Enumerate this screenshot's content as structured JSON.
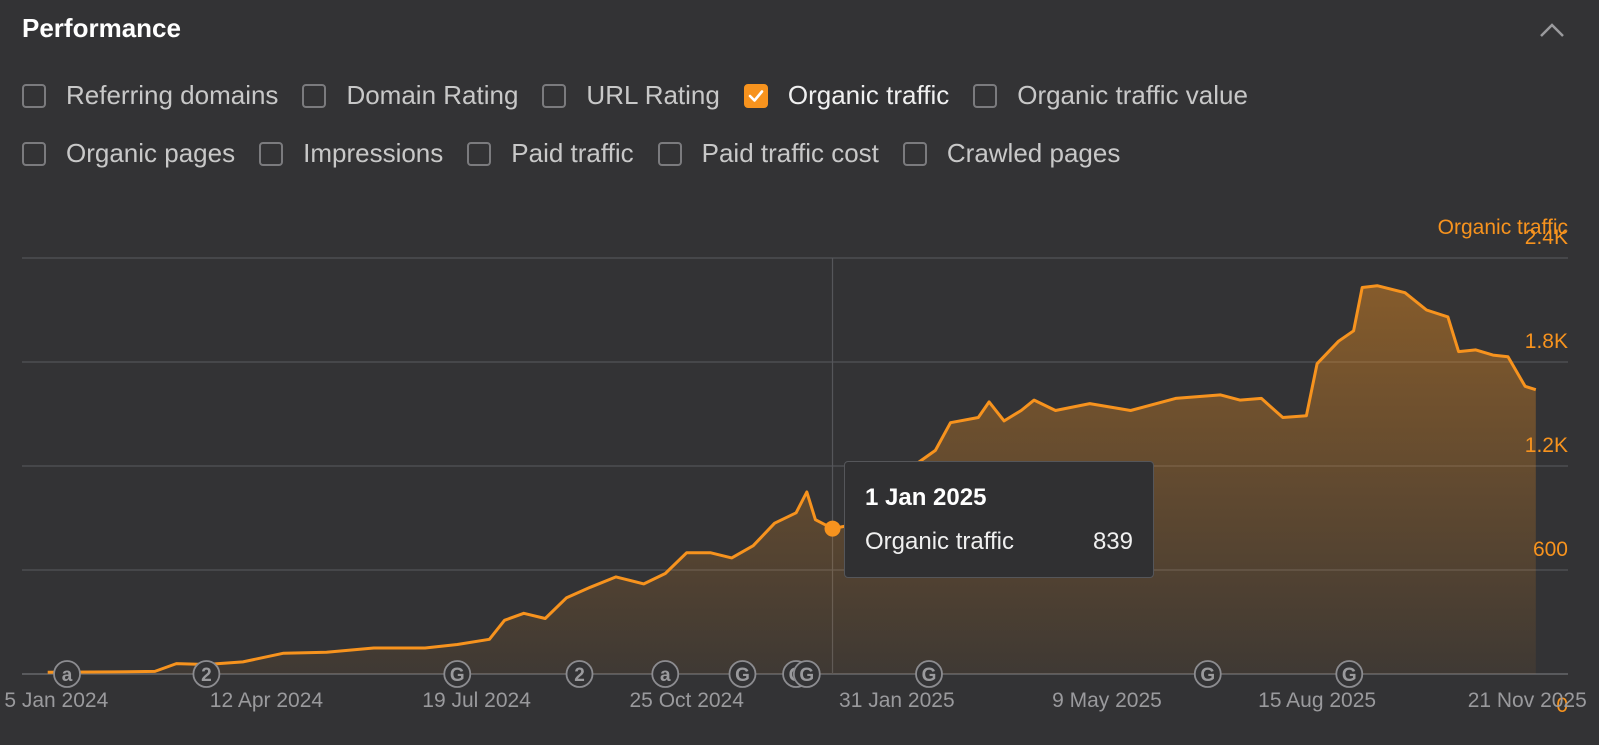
{
  "panel": {
    "title": "Performance"
  },
  "metrics": [
    {
      "label": "Referring domains",
      "checked": false
    },
    {
      "label": "Domain Rating",
      "checked": false
    },
    {
      "label": "URL Rating",
      "checked": false
    },
    {
      "label": "Organic traffic",
      "checked": true
    },
    {
      "label": "Organic traffic value",
      "checked": false
    },
    {
      "label": "Organic pages",
      "checked": false
    },
    {
      "label": "Impressions",
      "checked": false
    },
    {
      "label": "Paid traffic",
      "checked": false
    },
    {
      "label": "Paid traffic cost",
      "checked": false
    },
    {
      "label": "Crawled pages",
      "checked": false
    }
  ],
  "colors": {
    "accent": "#f7931e",
    "background": "#333335",
    "grid": "#4d4e52"
  },
  "tooltip": {
    "date": "1 Jan 2025",
    "series": "Organic traffic",
    "value": "839"
  },
  "chart_data": {
    "type": "area",
    "ylabel": "Organic traffic",
    "ylim": [
      0,
      2400
    ],
    "yticks": [
      0,
      600,
      1200,
      1800,
      2400
    ],
    "ytick_labels": [
      "0",
      "600",
      "1.2K",
      "1.8K",
      "2.4K"
    ],
    "xlim": [
      "2023-12-20",
      "2025-12-10"
    ],
    "xticks": [
      "2024-01-05",
      "2024-04-12",
      "2024-07-19",
      "2024-10-25",
      "2025-01-31",
      "2025-05-09",
      "2025-08-15",
      "2025-11-21"
    ],
    "xtick_labels": [
      "5 Jan 2024",
      "12 Apr 2024",
      "19 Jul 2024",
      "25 Oct 2024",
      "31 Jan 2025",
      "9 May 2025",
      "15 Aug 2025",
      "21 Nov 2025"
    ],
    "grid": true,
    "series": [
      {
        "name": "Organic traffic",
        "color": "#f7931e",
        "points": [
          [
            "2024-01-01",
            10
          ],
          [
            "2024-02-01",
            12
          ],
          [
            "2024-02-20",
            15
          ],
          [
            "2024-03-01",
            60
          ],
          [
            "2024-03-15",
            55
          ],
          [
            "2024-04-01",
            70
          ],
          [
            "2024-04-20",
            120
          ],
          [
            "2024-05-10",
            125
          ],
          [
            "2024-06-01",
            150
          ],
          [
            "2024-06-25",
            150
          ],
          [
            "2024-07-10",
            170
          ],
          [
            "2024-07-25",
            200
          ],
          [
            "2024-08-01",
            310
          ],
          [
            "2024-08-10",
            350
          ],
          [
            "2024-08-20",
            320
          ],
          [
            "2024-08-30",
            440
          ],
          [
            "2024-09-10",
            500
          ],
          [
            "2024-09-22",
            560
          ],
          [
            "2024-10-05",
            520
          ],
          [
            "2024-10-15",
            580
          ],
          [
            "2024-10-25",
            700
          ],
          [
            "2024-11-05",
            700
          ],
          [
            "2024-11-15",
            670
          ],
          [
            "2024-11-25",
            740
          ],
          [
            "2024-12-05",
            870
          ],
          [
            "2024-12-15",
            930
          ],
          [
            "2024-12-20",
            1050
          ],
          [
            "2024-12-24",
            890
          ],
          [
            "2025-01-01",
            839
          ],
          [
            "2025-01-10",
            860
          ],
          [
            "2025-01-20",
            960
          ],
          [
            "2025-02-01",
            1040
          ],
          [
            "2025-02-10",
            1220
          ],
          [
            "2025-02-18",
            1290
          ],
          [
            "2025-02-25",
            1450
          ],
          [
            "2025-03-10",
            1480
          ],
          [
            "2025-03-15",
            1570
          ],
          [
            "2025-03-22",
            1460
          ],
          [
            "2025-03-30",
            1520
          ],
          [
            "2025-04-05",
            1580
          ],
          [
            "2025-04-15",
            1520
          ],
          [
            "2025-05-01",
            1560
          ],
          [
            "2025-05-20",
            1520
          ],
          [
            "2025-06-10",
            1590
          ],
          [
            "2025-07-01",
            1610
          ],
          [
            "2025-07-10",
            1580
          ],
          [
            "2025-07-20",
            1590
          ],
          [
            "2025-07-30",
            1480
          ],
          [
            "2025-08-10",
            1490
          ],
          [
            "2025-08-15",
            1790
          ],
          [
            "2025-08-25",
            1920
          ],
          [
            "2025-09-01",
            1980
          ],
          [
            "2025-09-05",
            2230
          ],
          [
            "2025-09-12",
            2240
          ],
          [
            "2025-09-25",
            2200
          ],
          [
            "2025-10-05",
            2100
          ],
          [
            "2025-10-15",
            2060
          ],
          [
            "2025-10-20",
            1860
          ],
          [
            "2025-10-28",
            1870
          ],
          [
            "2025-11-05",
            1840
          ],
          [
            "2025-11-12",
            1830
          ],
          [
            "2025-11-20",
            1660
          ],
          [
            "2025-11-25",
            1640
          ]
        ]
      }
    ],
    "highlight": {
      "date": "2025-01-01",
      "value": 839
    },
    "annotations": [
      {
        "date": "2024-01-10",
        "label": "a"
      },
      {
        "date": "2024-03-15",
        "label": "2"
      },
      {
        "date": "2024-07-10",
        "label": "G"
      },
      {
        "date": "2024-09-05",
        "label": "2"
      },
      {
        "date": "2024-10-15",
        "label": "a"
      },
      {
        "date": "2024-11-20",
        "label": "G"
      },
      {
        "date": "2024-12-15",
        "label": "G"
      },
      {
        "date": "2024-12-20",
        "label": "G"
      },
      {
        "date": "2025-02-15",
        "label": "G"
      },
      {
        "date": "2025-06-25",
        "label": "G"
      },
      {
        "date": "2025-08-30",
        "label": "G"
      }
    ]
  }
}
